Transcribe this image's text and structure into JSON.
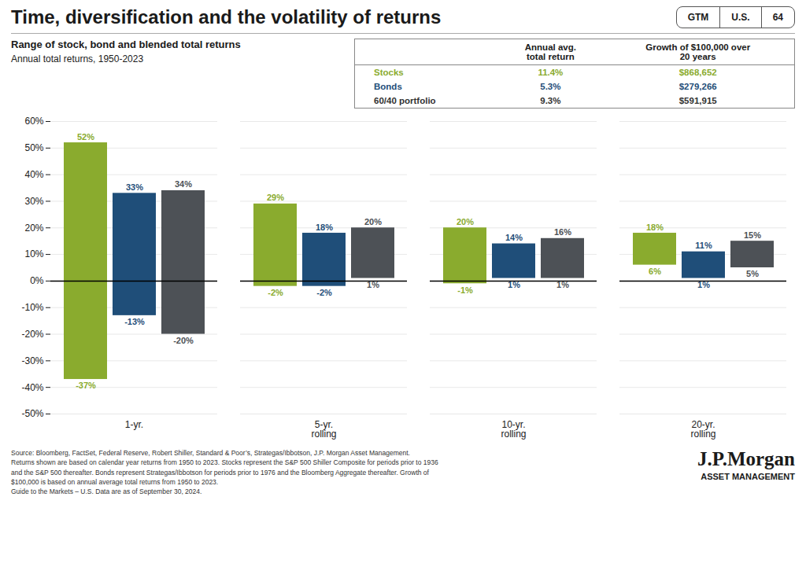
{
  "chart_data": {
    "type": "bar",
    "title": "Time, diversification and the volatility of returns",
    "subtitle": [
      "Range of stock, bond and blended total returns",
      "Annual total returns, 1950-2023"
    ],
    "categories": [
      "1-yr.",
      "5-yr.\nrolling",
      "10-yr.\nrolling",
      "20-yr.\nrolling"
    ],
    "series": [
      {
        "color": "#8aab2e",
        "values": [
          [
            -37,
            52
          ],
          [
            -2,
            29
          ],
          [
            -1,
            20
          ],
          [
            6,
            18
          ]
        ],
        "value_labels": [
          [
            "-37%",
            "52%"
          ],
          [
            "-2%",
            "29%"
          ],
          [
            "-1%",
            "20%"
          ],
          [
            "6%",
            "18%"
          ]
        ]
      },
      {
        "color": "#1f4e79",
        "values": [
          [
            -13,
            33
          ],
          [
            -2,
            18
          ],
          [
            1,
            14
          ],
          [
            1,
            11
          ]
        ],
        "value_labels": [
          [
            "-13%",
            "33%"
          ],
          [
            "-2%",
            "18%"
          ],
          [
            "1%",
            "14%"
          ],
          [
            "1%",
            "11%"
          ]
        ]
      },
      {
        "color": "#4d5156",
        "values": [
          [
            -20,
            34
          ],
          [
            1,
            20
          ],
          [
            1,
            16
          ],
          [
            5,
            15
          ]
        ],
        "value_labels": [
          [
            "-20%",
            "34%"
          ],
          [
            "1%",
            "20%"
          ],
          [
            "1%",
            "16%"
          ],
          [
            "5%",
            "15%"
          ]
        ]
      }
    ],
    "data_labels": true,
    "ylim": [
      -50,
      60
    ],
    "yticks": [
      {
        "value": -50,
        "label": "-50%"
      },
      {
        "value": -40,
        "label": "-40%"
      },
      {
        "value": -30,
        "label": "-30%"
      },
      {
        "value": -20,
        "label": "-20%"
      },
      {
        "value": -10,
        "label": "-10%"
      },
      {
        "value": 0,
        "label": "0%"
      },
      {
        "value": 10,
        "label": "10%"
      },
      {
        "value": 20,
        "label": "20%"
      },
      {
        "value": 30,
        "label": "30%"
      },
      {
        "value": 40,
        "label": "40%"
      },
      {
        "value": 50,
        "label": "50%"
      },
      {
        "value": 60,
        "label": "60%"
      }
    ],
    "grid": true,
    "table": {
      "columns": [
        "Annual avg.\ntotal return",
        "Growth of $100,000 over\n20 years"
      ],
      "rows": [
        {
          "label": "Stocks",
          "cells": [
            "11.4%",
            "$868,652"
          ],
          "color": "#8aab2e"
        },
        {
          "label": "Bonds",
          "cells": [
            "5.3%",
            "$279,266"
          ],
          "color": "#1f4e79"
        },
        {
          "label": "60/40 portfolio",
          "cells": [
            "9.3%",
            "$591,915"
          ],
          "color": "#333333"
        }
      ]
    },
    "badge": [
      "GTM",
      "U.S.",
      "64"
    ],
    "logo": [
      "J.P.Morgan",
      "ASSET MANAGEMENT"
    ],
    "source": "Source: Bloomberg, FactSet, Federal Reserve, Robert Shiller, Standard & Poor’s, Strategas/Ibbotson, J.P. Morgan Asset Management.\nReturns shown are based on calendar year returns from 1950 to 2023. Stocks represent the S&P 500 Shiller Composite for periods prior to 1936\nand the S&P 500 thereafter. Bonds represent Strategas/Ibbotson for periods prior to 1976 and the Bloomberg Aggregate thereafter. Growth of\n$100,000 is based on annual average total returns from 1950 to 2023.\nGuide to the Markets – U.S. Data are as of September 30, 2024."
  }
}
